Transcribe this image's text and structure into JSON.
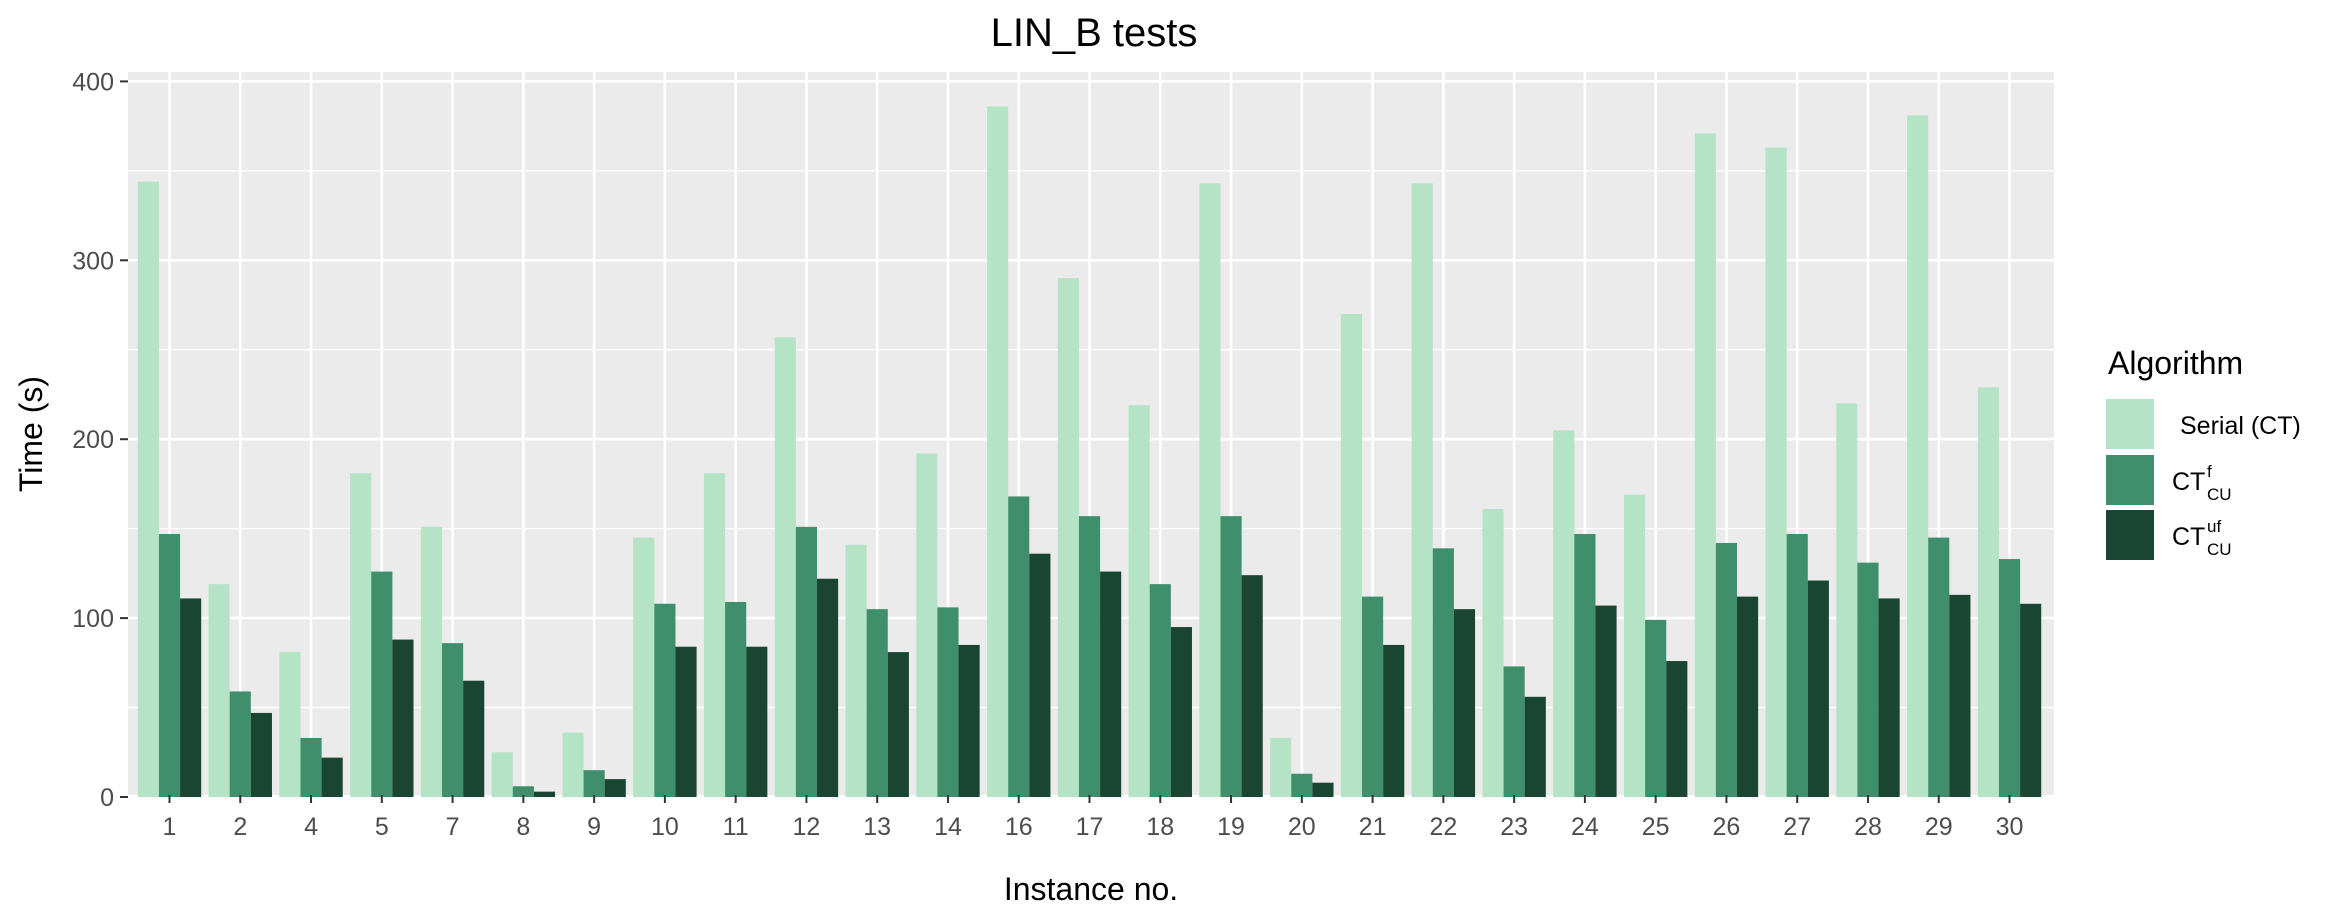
{
  "chart_data": {
    "type": "bar",
    "title": "LIN_B tests",
    "xlabel": "Instance no.",
    "ylabel": "Time (s)",
    "ylim": [
      0,
      410
    ],
    "yticks": [
      0,
      100,
      200,
      300,
      400
    ],
    "grid": true,
    "legend": {
      "title": "Algorithm",
      "placement": "right"
    },
    "categories": [
      "1",
      "2",
      "4",
      "5",
      "7",
      "8",
      "9",
      "10",
      "11",
      "12",
      "13",
      "14",
      "16",
      "17",
      "18",
      "19",
      "20",
      "21",
      "22",
      "23",
      "24",
      "25",
      "26",
      "27",
      "28",
      "29",
      "30"
    ],
    "series": [
      {
        "name": "Serial (CT)",
        "label_main": "Serial (CT)",
        "label_sup": "",
        "label_sub": "",
        "color": "#b5e3c5",
        "values": [
          344,
          119,
          81,
          181,
          151,
          25,
          36,
          145,
          181,
          257,
          141,
          192,
          386,
          290,
          219,
          343,
          33,
          270,
          343,
          161,
          205,
          169,
          371,
          363,
          220,
          381,
          229
        ]
      },
      {
        "name": "CT f CU",
        "label_main": "CT",
        "label_sup": "f",
        "label_sub": "CU",
        "color": "#3f8f6c",
        "values": [
          147,
          59,
          33,
          126,
          86,
          6,
          15,
          108,
          109,
          151,
          105,
          106,
          168,
          157,
          119,
          157,
          13,
          112,
          139,
          73,
          147,
          99,
          142,
          147,
          131,
          145,
          133
        ]
      },
      {
        "name": "CT uf CU",
        "label_main": "CT",
        "label_sup": "uf",
        "label_sub": "CU",
        "color": "#1b4533",
        "values": [
          111,
          47,
          22,
          88,
          65,
          3,
          10,
          84,
          84,
          122,
          81,
          85,
          136,
          126,
          95,
          124,
          8,
          85,
          105,
          56,
          107,
          76,
          112,
          121,
          111,
          113,
          108
        ]
      }
    ]
  }
}
